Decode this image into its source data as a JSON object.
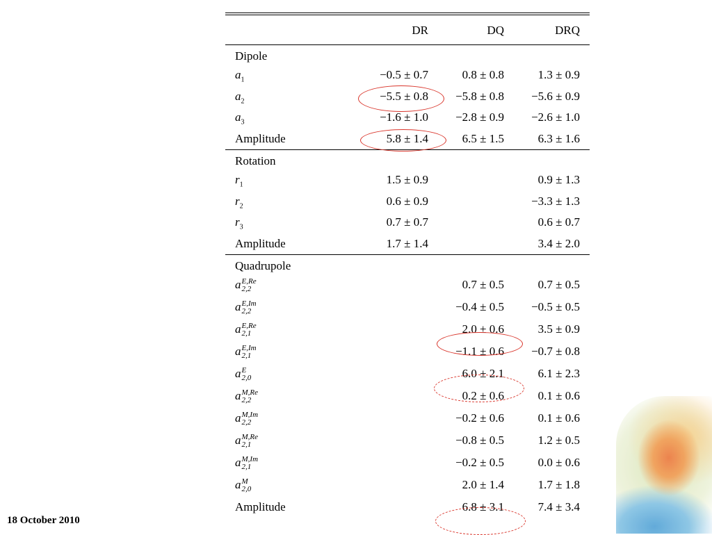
{
  "footer": {
    "date": "18 October 2010"
  },
  "table": {
    "columns": [
      "DR",
      "DQ",
      "DRQ"
    ],
    "dipole": {
      "title": "Dipole",
      "rows": [
        {
          "label": "a1",
          "sub": "1",
          "dr": "−0.5 ± 0.7",
          "dq": "0.8 ± 0.8",
          "drq": "1.3 ± 0.9"
        },
        {
          "label": "a2",
          "sub": "2",
          "dr": "−5.5 ± 0.8",
          "dq": "−5.8 ± 0.8",
          "drq": "−5.6 ± 0.9"
        },
        {
          "label": "a3",
          "sub": "3",
          "dr": "−1.6 ± 1.0",
          "dq": "−2.8 ± 0.9",
          "drq": "−2.6 ± 1.0"
        },
        {
          "label": "Amplitude",
          "dr": "5.8 ± 1.4",
          "dq": "6.5 ± 1.5",
          "drq": "6.3 ± 1.6"
        }
      ]
    },
    "rotation": {
      "title": "Rotation",
      "rows": [
        {
          "label": "r1",
          "sub": "1",
          "dr": "1.5 ± 0.9",
          "dq": "",
          "drq": "0.9 ± 1.3"
        },
        {
          "label": "r2",
          "sub": "2",
          "dr": "0.6 ± 0.9",
          "dq": "",
          "drq": "−3.3 ± 1.3"
        },
        {
          "label": "r3",
          "sub": "3",
          "dr": "0.7 ± 0.7",
          "dq": "",
          "drq": "0.6 ± 0.7"
        },
        {
          "label": "Amplitude",
          "dr": "1.7 ± 1.4",
          "dq": "",
          "drq": "3.4 ± 2.0"
        }
      ]
    },
    "quadrupole": {
      "title": "Quadrupole",
      "rows": [
        {
          "sup": "E,Re",
          "sub": "2,2",
          "dr": "",
          "dq": "0.7 ± 0.5",
          "drq": "0.7 ± 0.5"
        },
        {
          "sup": "E,Im",
          "sub": "2,2",
          "dr": "",
          "dq": "−0.4 ± 0.5",
          "drq": "−0.5 ± 0.5"
        },
        {
          "sup": "E,Re",
          "sub": "2,1",
          "dr": "",
          "dq": "2.0 ± 0.6",
          "drq": "3.5 ± 0.9"
        },
        {
          "sup": "E,Im",
          "sub": "2,1",
          "dr": "",
          "dq": "−1.1 ± 0.6",
          "drq": "−0.7 ± 0.8"
        },
        {
          "sup": "E",
          "sub": "2,0",
          "dr": "",
          "dq": "6.0 ± 2.1",
          "drq": "6.1 ± 2.3"
        },
        {
          "sup": "M,Re",
          "sub": "2,2",
          "dr": "",
          "dq": "0.2 ± 0.6",
          "drq": "0.1 ± 0.6"
        },
        {
          "sup": "M,Im",
          "sub": "2,2",
          "dr": "",
          "dq": "−0.2 ± 0.6",
          "drq": "0.1 ± 0.6"
        },
        {
          "sup": "M,Re",
          "sub": "2,1",
          "dr": "",
          "dq": "−0.8 ± 0.5",
          "drq": "1.2 ± 0.5"
        },
        {
          "sup": "M,Im",
          "sub": "2,1",
          "dr": "",
          "dq": "−0.2 ± 0.5",
          "drq": "0.0 ± 0.6"
        },
        {
          "sup": "M",
          "sub": "2,0",
          "dr": "",
          "dq": "2.0 ± 1.4",
          "drq": "1.7 ± 1.8"
        },
        {
          "label": "Amplitude",
          "dr": "",
          "dq": "6.8 ± 3.1",
          "drq": "7.4 ± 3.4"
        }
      ]
    },
    "annotation_color": "#d9352b"
  }
}
